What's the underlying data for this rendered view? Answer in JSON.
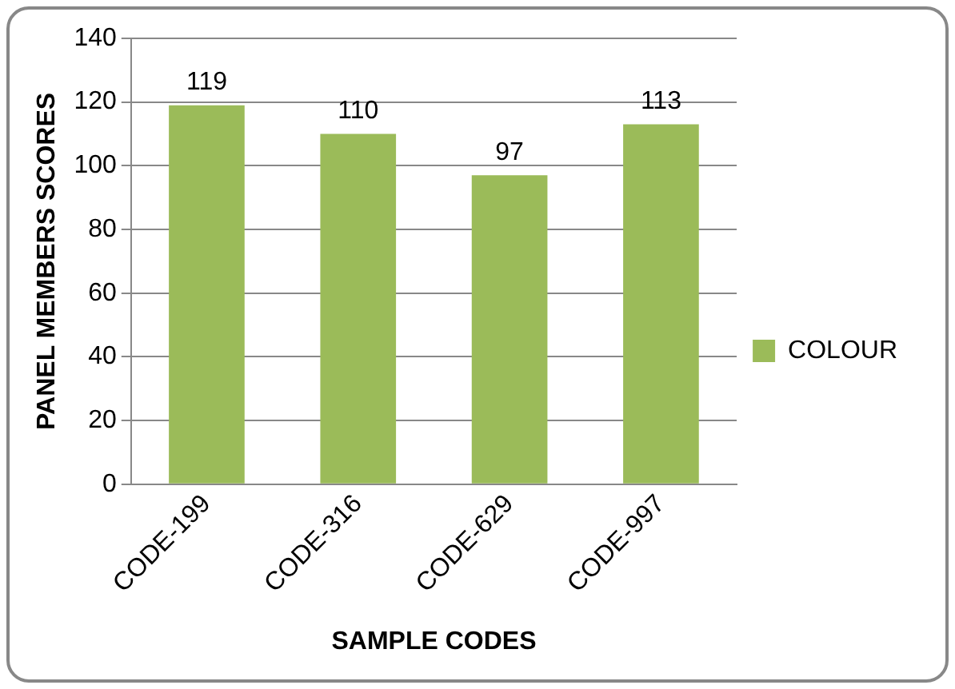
{
  "chart_data": {
    "type": "bar",
    "xlabel": "SAMPLE CODES",
    "ylabel": "PANEL MEMBERS SCORES",
    "categories": [
      "CODE-199",
      "CODE-316",
      "CODE-629",
      "CODE-997"
    ],
    "series": [
      {
        "name": "COLOUR",
        "color": "#9bbb59",
        "values": [
          119,
          110,
          97,
          113
        ]
      }
    ],
    "ylim": [
      0,
      140
    ],
    "yticks": [
      0,
      20,
      40,
      60,
      80,
      100,
      120,
      140
    ],
    "grid": "y",
    "legend": "right",
    "data_labels": true
  }
}
